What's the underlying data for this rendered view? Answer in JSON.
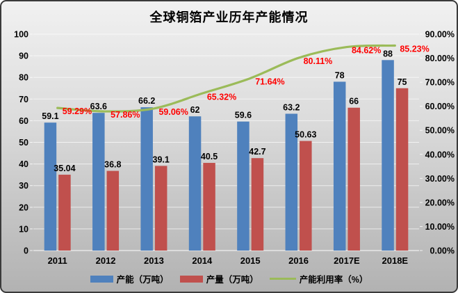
{
  "chart_data": {
    "type": "bar",
    "subtype": "bar-line-combo",
    "title": "全球铜箔产业历年产能情况",
    "categories": [
      "2011",
      "2012",
      "2013",
      "2014",
      "2015",
      "2016",
      "2017E",
      "2018E"
    ],
    "series": [
      {
        "name": "产能（万吨）",
        "kind": "bar",
        "axis": "left",
        "color": "#4f81bd",
        "values": [
          59.1,
          63.6,
          66.2,
          62,
          59.6,
          63.2,
          78,
          88
        ],
        "labels": [
          "59.1",
          "63.6",
          "66.2",
          "62",
          "59.6",
          "63.2",
          "78",
          "88"
        ],
        "label_color": "#000000"
      },
      {
        "name": "产量（万吨）",
        "kind": "bar",
        "axis": "left",
        "color": "#c0504d",
        "values": [
          35.04,
          36.8,
          39.1,
          40.5,
          42.7,
          50.63,
          66,
          75
        ],
        "labels": [
          "35.04",
          "36.8",
          "39.1",
          "40.5",
          "42.7",
          "50.63",
          "66",
          "75"
        ],
        "label_color": "#000000"
      },
      {
        "name": "产能利用率（%）",
        "kind": "line",
        "axis": "right",
        "color": "#9bbb59",
        "values": [
          59.29,
          57.86,
          59.06,
          65.32,
          71.64,
          80.11,
          84.62,
          85.23
        ],
        "labels": [
          "59.29%",
          "57.86%",
          "59.06%",
          "65.32%",
          "71.64%",
          "80.11%",
          "84.62%",
          "85.23%"
        ],
        "label_color": "#ff0000"
      }
    ],
    "left_axis": {
      "min": 0,
      "max": 100,
      "step": 10,
      "tick_labels": [
        "0",
        "10",
        "20",
        "30",
        "40",
        "50",
        "60",
        "70",
        "80",
        "90",
        "100"
      ]
    },
    "right_axis": {
      "min": 0,
      "max": 90,
      "step": 10,
      "tick_labels": [
        "0.00%",
        "10.00%",
        "20.00%",
        "30.00%",
        "40.00%",
        "50.00%",
        "60.00%",
        "70.00%",
        "80.00%",
        "90.00%"
      ]
    },
    "grid": true,
    "legend_position": "bottom"
  },
  "colors": {
    "background_top": "#f1f1f1",
    "background_bottom": "#b2b2b2",
    "frame_border": "#3a3a3a",
    "gridline": "rgba(255,255,255,0.65)",
    "axis_text": "#000000"
  }
}
